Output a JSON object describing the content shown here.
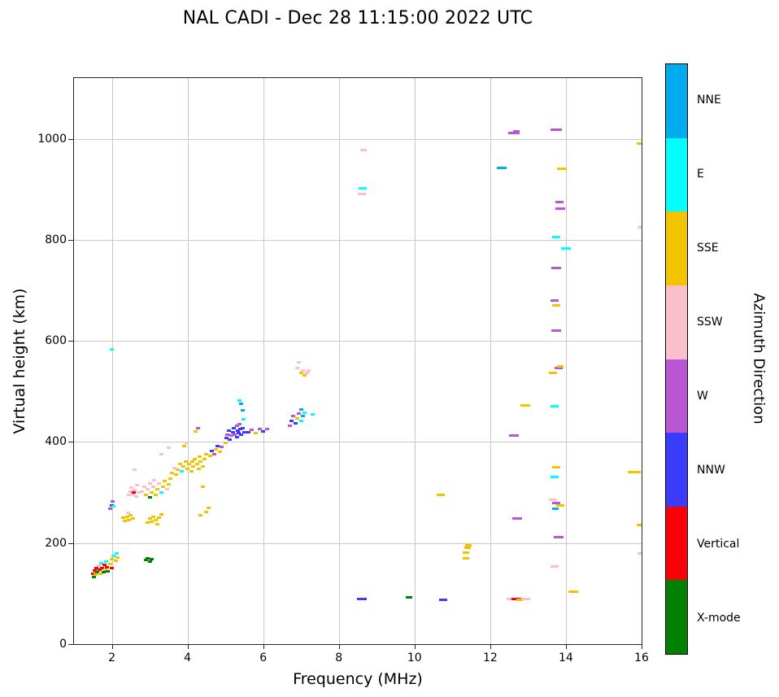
{
  "title": "NAL CADI - Dec 28 11:15:00 2022 UTC",
  "chart_data": {
    "type": "scatter",
    "title": "NAL CADI - Dec 28 11:15:00 2022 UTC",
    "xlabel": "Frequency (MHz)",
    "ylabel": "Virtual height (km)",
    "xlim": [
      1,
      16
    ],
    "ylim": [
      0,
      1120
    ],
    "xticks": [
      2,
      4,
      6,
      8,
      10,
      12,
      14,
      16
    ],
    "yticks": [
      0,
      200,
      400,
      600,
      800,
      1000
    ],
    "grid": true,
    "legend_position": "right-colorbar",
    "colorbar": {
      "label": "Azimuth Direction",
      "categories": [
        "NNE",
        "E",
        "SSE",
        "SSW",
        "W",
        "NNW",
        "Vertical",
        "X-mode"
      ],
      "colors": [
        "#00ACEE",
        "#00FFFF",
        "#F2C400",
        "#FCC0CD",
        "#BA55D3",
        "#3B3BFB",
        "#FB0006",
        "#028002"
      ]
    },
    "point_note": "points are [frequency_MHz, virtual_height_km, azimuth_category, dash_width_px_optional]",
    "points": [
      [
        1.5,
        140,
        "Vertical"
      ],
      [
        1.52,
        133,
        "X-mode"
      ],
      [
        1.55,
        145,
        "Vertical"
      ],
      [
        1.58,
        138,
        "SSE"
      ],
      [
        1.6,
        150,
        "Vertical"
      ],
      [
        1.62,
        142,
        "X-mode"
      ],
      [
        1.65,
        155,
        "SSW"
      ],
      [
        1.68,
        147,
        "Vertical"
      ],
      [
        1.7,
        139,
        "SSE"
      ],
      [
        1.72,
        160,
        "E"
      ],
      [
        1.75,
        150,
        "Vertical"
      ],
      [
        1.78,
        143,
        "X-mode"
      ],
      [
        1.8,
        157,
        "Vertical"
      ],
      [
        1.82,
        148,
        "SSE"
      ],
      [
        1.85,
        163,
        "E"
      ],
      [
        1.88,
        152,
        "Vertical"
      ],
      [
        1.9,
        144,
        "X-mode"
      ],
      [
        1.95,
        158,
        "SSE"
      ],
      [
        2.0,
        150,
        "Vertical"
      ],
      [
        2.0,
        168,
        "SSE"
      ],
      [
        2.05,
        175,
        "E"
      ],
      [
        2.1,
        165,
        "SSE"
      ],
      [
        2.12,
        180,
        "E"
      ],
      [
        2.15,
        172,
        "SSE"
      ],
      [
        1.95,
        268,
        "W"
      ],
      [
        2.0,
        275,
        "NNW"
      ],
      [
        2.02,
        282,
        "W"
      ],
      [
        2.05,
        272,
        "E"
      ],
      [
        2.0,
        583,
        "E"
      ],
      [
        2.3,
        250,
        "SSE"
      ],
      [
        2.35,
        244,
        "SSE"
      ],
      [
        2.4,
        252,
        "SSE"
      ],
      [
        2.42,
        260,
        "SSW"
      ],
      [
        2.45,
        246,
        "SSE"
      ],
      [
        2.5,
        255,
        "SSE"
      ],
      [
        2.55,
        248,
        "SSE"
      ],
      [
        2.45,
        295,
        "SSW"
      ],
      [
        2.5,
        302,
        "SSW"
      ],
      [
        2.52,
        310,
        "SSW"
      ],
      [
        2.55,
        297,
        "SSW"
      ],
      [
        2.58,
        300,
        "Vertical"
      ],
      [
        2.6,
        305,
        "SSW"
      ],
      [
        2.65,
        292,
        "SSW"
      ],
      [
        2.66,
        315,
        "SSW"
      ],
      [
        2.7,
        300,
        "SSW"
      ],
      [
        2.6,
        345,
        "SSW"
      ],
      [
        2.9,
        166,
        "X-mode"
      ],
      [
        2.95,
        170,
        "X-mode"
      ],
      [
        3.0,
        163,
        "X-mode"
      ],
      [
        3.05,
        168,
        "X-mode"
      ],
      [
        2.95,
        240,
        "SSE"
      ],
      [
        3.0,
        248,
        "SSE"
      ],
      [
        3.05,
        242,
        "SSE"
      ],
      [
        3.1,
        252,
        "SSE"
      ],
      [
        3.15,
        245,
        "SSE"
      ],
      [
        3.2,
        238,
        "SSE"
      ],
      [
        3.25,
        250,
        "SSE"
      ],
      [
        3.3,
        256,
        "SSE"
      ],
      [
        2.8,
        302,
        "SSW"
      ],
      [
        2.85,
        312,
        "SSW"
      ],
      [
        2.9,
        296,
        "SSE"
      ],
      [
        2.95,
        306,
        "SSW"
      ],
      [
        3.0,
        318,
        "SSW"
      ],
      [
        3.0,
        290,
        "X-mode"
      ],
      [
        3.05,
        300,
        "SSE"
      ],
      [
        3.1,
        312,
        "SSW"
      ],
      [
        3.12,
        325,
        "SSW"
      ],
      [
        3.15,
        296,
        "SSE"
      ],
      [
        3.2,
        306,
        "SSE"
      ],
      [
        3.25,
        318,
        "SSW"
      ],
      [
        3.3,
        300,
        "E"
      ],
      [
        3.35,
        312,
        "SSE"
      ],
      [
        3.4,
        322,
        "SSE"
      ],
      [
        3.45,
        306,
        "SSW"
      ],
      [
        3.5,
        316,
        "SSE"
      ],
      [
        3.55,
        328,
        "SSE"
      ],
      [
        3.3,
        375,
        "SSW"
      ],
      [
        3.5,
        388,
        "SSW"
      ],
      [
        3.6,
        338,
        "SSE"
      ],
      [
        3.65,
        348,
        "SSW"
      ],
      [
        3.7,
        335,
        "SSE"
      ],
      [
        3.75,
        345,
        "SSE"
      ],
      [
        3.8,
        356,
        "SSE"
      ],
      [
        3.85,
        342,
        "E"
      ],
      [
        3.9,
        352,
        "SSE"
      ],
      [
        3.95,
        362,
        "SSE"
      ],
      [
        4.0,
        347,
        "SSE"
      ],
      [
        3.92,
        392,
        "SSE"
      ],
      [
        3.97,
        398,
        "SSW"
      ],
      [
        4.05,
        356,
        "SSE"
      ],
      [
        4.1,
        342,
        "SSE"
      ],
      [
        4.12,
        362,
        "SSE"
      ],
      [
        4.15,
        352,
        "SSE"
      ],
      [
        4.2,
        366,
        "SSE"
      ],
      [
        4.25,
        356,
        "SSE"
      ],
      [
        4.3,
        346,
        "SSE"
      ],
      [
        4.32,
        371,
        "SSE"
      ],
      [
        4.35,
        361,
        "SSE"
      ],
      [
        4.4,
        351,
        "SSE"
      ],
      [
        4.45,
        366,
        "SSE"
      ],
      [
        4.5,
        376,
        "SSE"
      ],
      [
        4.22,
        421,
        "SSE"
      ],
      [
        4.27,
        427,
        "W"
      ],
      [
        4.4,
        312,
        "SSE"
      ],
      [
        4.35,
        255,
        "SSE"
      ],
      [
        4.5,
        262,
        "SSE"
      ],
      [
        4.55,
        270,
        "SSE"
      ],
      [
        4.6,
        372,
        "SSE"
      ],
      [
        4.65,
        382,
        "NNW"
      ],
      [
        4.7,
        376,
        "W"
      ],
      [
        4.75,
        386,
        "SSE"
      ],
      [
        4.8,
        392,
        "NNW"
      ],
      [
        4.85,
        380,
        "SSE"
      ],
      [
        4.9,
        390,
        "W"
      ],
      [
        5.0,
        398,
        "SSE"
      ],
      [
        5.02,
        408,
        "NNW"
      ],
      [
        5.05,
        415,
        "W"
      ],
      [
        5.1,
        422,
        "NNW"
      ],
      [
        5.12,
        405,
        "NNW"
      ],
      [
        5.15,
        412,
        "W"
      ],
      [
        5.2,
        420,
        "NNW"
      ],
      [
        5.22,
        428,
        "NNW"
      ],
      [
        5.25,
        415,
        "W"
      ],
      [
        5.3,
        410,
        "NNW"
      ],
      [
        5.3,
        432,
        "W"
      ],
      [
        5.32,
        422,
        "NNW"
      ],
      [
        5.35,
        418,
        "NNW"
      ],
      [
        5.38,
        435,
        "W"
      ],
      [
        5.4,
        425,
        "NNW"
      ],
      [
        5.42,
        415,
        "NNW"
      ],
      [
        5.45,
        428,
        "NNW"
      ],
      [
        5.5,
        420,
        "NNW"
      ],
      [
        5.48,
        445,
        "E"
      ],
      [
        5.45,
        462,
        "NNE"
      ],
      [
        5.42,
        475,
        "NNE"
      ],
      [
        5.38,
        482,
        "E"
      ],
      [
        5.6,
        420,
        "NNW"
      ],
      [
        5.7,
        424,
        "W"
      ],
      [
        5.8,
        418,
        "SSE"
      ],
      [
        5.9,
        426,
        "W"
      ],
      [
        6.0,
        421,
        "NNW"
      ],
      [
        6.1,
        425,
        "W"
      ],
      [
        6.7,
        432,
        "W"
      ],
      [
        6.75,
        442,
        "NNW"
      ],
      [
        6.8,
        452,
        "W"
      ],
      [
        6.85,
        437,
        "NNW"
      ],
      [
        6.9,
        447,
        "SSE"
      ],
      [
        6.95,
        457,
        "W"
      ],
      [
        7.0,
        442,
        "E"
      ],
      [
        7.05,
        452,
        "NNE"
      ],
      [
        7.1,
        458,
        "E"
      ],
      [
        7.0,
        465,
        "NNE"
      ],
      [
        7.3,
        455,
        "E"
      ],
      [
        6.9,
        547,
        "SSW"
      ],
      [
        6.95,
        557,
        "SSW"
      ],
      [
        7.0,
        537,
        "SSE"
      ],
      [
        7.05,
        542,
        "SSW"
      ],
      [
        7.1,
        532,
        "SSE"
      ],
      [
        7.15,
        537,
        "SSW"
      ],
      [
        7.2,
        542,
        "SSW"
      ],
      [
        8.6,
        90,
        "NNW",
        12
      ],
      [
        8.6,
        890,
        "SSW",
        10
      ],
      [
        8.62,
        902,
        "E",
        10
      ],
      [
        8.65,
        978,
        "SSW",
        8
      ],
      [
        9.85,
        93,
        "X-mode",
        8
      ],
      [
        10.7,
        295,
        "SSE",
        10
      ],
      [
        10.75,
        88,
        "NNW",
        10
      ],
      [
        11.35,
        170,
        "SSE",
        8
      ],
      [
        11.35,
        181,
        "SSE",
        8
      ],
      [
        11.4,
        190,
        "SSE",
        8
      ],
      [
        11.42,
        196,
        "SSE",
        8
      ],
      [
        12.3,
        942,
        "NNE",
        12
      ],
      [
        12.55,
        90,
        "SSW",
        10
      ],
      [
        12.7,
        90,
        "Vertical",
        12
      ],
      [
        12.78,
        88,
        "SSE",
        8
      ],
      [
        12.95,
        89,
        "SSW",
        10
      ],
      [
        12.62,
        1012,
        "W",
        14
      ],
      [
        12.68,
        1015,
        "W",
        8
      ],
      [
        12.62,
        412,
        "W",
        12
      ],
      [
        12.72,
        248,
        "W",
        12
      ],
      [
        12.92,
        472,
        "SSE",
        12
      ],
      [
        13.75,
        1018,
        "W",
        14
      ],
      [
        13.9,
        940,
        "SSE",
        12
      ],
      [
        13.82,
        875,
        "W",
        10
      ],
      [
        13.86,
        862,
        "W",
        12
      ],
      [
        13.75,
        805,
        "E",
        10
      ],
      [
        14.0,
        783,
        "E",
        12
      ],
      [
        13.75,
        745,
        "W",
        12
      ],
      [
        13.7,
        680,
        "W",
        10
      ],
      [
        13.75,
        670,
        "SSE",
        10
      ],
      [
        13.75,
        620,
        "W",
        12
      ],
      [
        13.65,
        537,
        "SSE",
        10
      ],
      [
        13.8,
        546,
        "W",
        10
      ],
      [
        13.85,
        549,
        "SSE",
        8
      ],
      [
        13.7,
        470,
        "E",
        10
      ],
      [
        13.75,
        350,
        "SSE",
        10
      ],
      [
        13.7,
        330,
        "E",
        10
      ],
      [
        13.65,
        286,
        "SSW",
        10
      ],
      [
        13.75,
        280,
        "W",
        10
      ],
      [
        13.85,
        274,
        "SSE",
        10
      ],
      [
        13.72,
        268,
        "NNE",
        8
      ],
      [
        13.8,
        212,
        "W",
        12
      ],
      [
        13.7,
        153,
        "SSW",
        10
      ],
      [
        14.2,
        103,
        "SSE",
        12
      ],
      [
        15.8,
        340,
        "SSE",
        16
      ],
      [
        15.95,
        990,
        "SSE",
        8
      ],
      [
        15.98,
        825,
        "SSW",
        8
      ],
      [
        15.95,
        235,
        "SSE",
        8
      ],
      [
        15.98,
        180,
        "SSW",
        8
      ]
    ]
  }
}
